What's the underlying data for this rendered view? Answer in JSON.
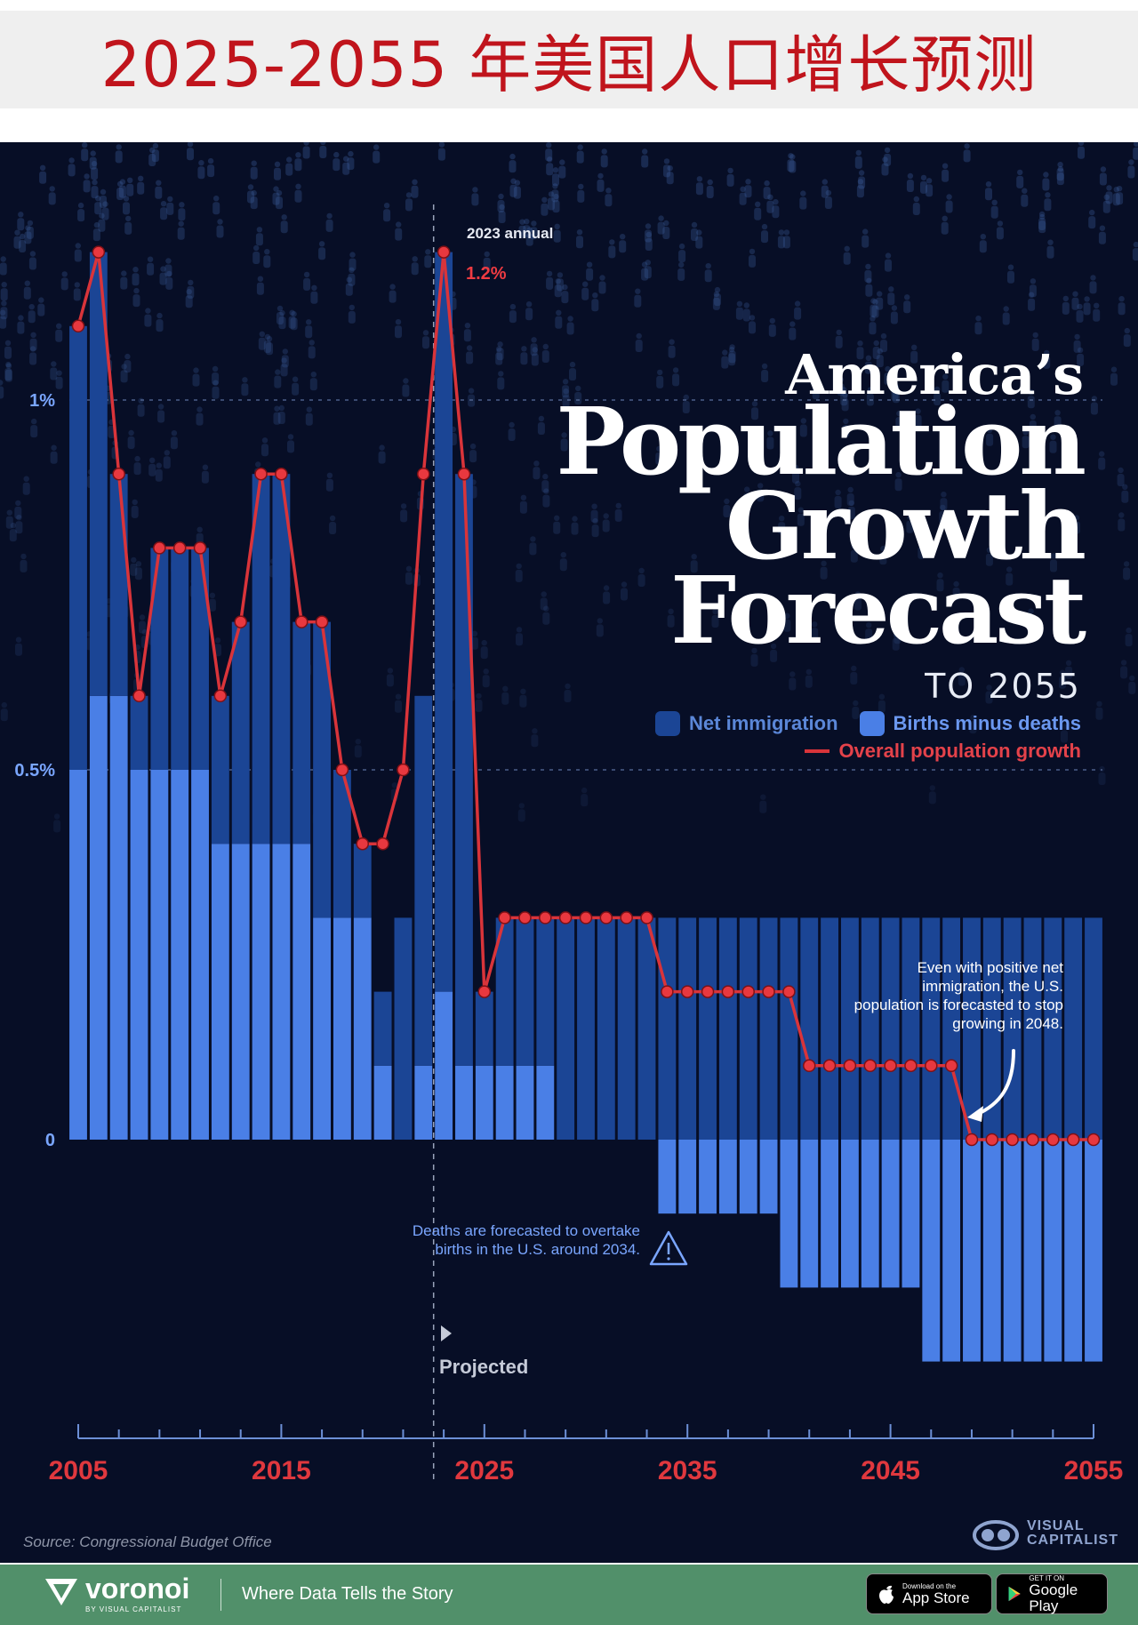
{
  "banner": {
    "title": "2025-2055 年美国人口增长预测"
  },
  "title": {
    "line1": "America’s",
    "line2": "Population",
    "line3": "Growth",
    "line4": "Forecast",
    "line5": "TO 2055"
  },
  "legend": {
    "net_immigration": "Net immigration",
    "births_minus_deaths": "Births minus deaths",
    "overall_growth": "Overall population growth"
  },
  "colors": {
    "background": "#070e26",
    "net_immigration": "#1b4595",
    "births_minus_deaths": "#4a7fe6",
    "overall_growth": "#d9343a",
    "axis_year": "#e0383e",
    "axis_tick": "#6c8fd6"
  },
  "annotations": {
    "peak_label": "2023 annual",
    "peak_value": "1.2%",
    "stop_growing": "Even with positive net immigration, the U.S. population is forecasted to stop growing in 2048.",
    "deaths_overtake": "Deaths are forecasted to overtake births in the U.S. around 2034.",
    "projected": "Projected"
  },
  "source": "Source: Congressional Budget Office",
  "branding": {
    "visual_capitalist_line1": "VISUAL",
    "visual_capitalist_line2": "CAPITALIST",
    "voronoi": "voronoi",
    "voronoi_by": "BY VISUAL CAPITALIST",
    "tagline": "Where Data Tells the Story",
    "appstore_small": "Download on the",
    "appstore_big": "App Store",
    "googleplay_small": "GET IT ON",
    "googleplay_big": "Google Play"
  },
  "chart_data": {
    "type": "bar",
    "title": "America’s Population Growth Forecast to 2055",
    "x": [
      2005,
      2006,
      2007,
      2008,
      2009,
      2010,
      2011,
      2012,
      2013,
      2014,
      2015,
      2016,
      2017,
      2018,
      2019,
      2020,
      2021,
      2022,
      2023,
      2024,
      2025,
      2026,
      2027,
      2028,
      2029,
      2030,
      2031,
      2032,
      2033,
      2034,
      2035,
      2036,
      2037,
      2038,
      2039,
      2040,
      2041,
      2042,
      2043,
      2044,
      2045,
      2046,
      2047,
      2048,
      2049,
      2050,
      2051,
      2052,
      2053,
      2054,
      2055
    ],
    "series": [
      {
        "name": "Net immigration",
        "stack": true,
        "values": [
          0.6,
          0.6,
          0.3,
          0.1,
          0.3,
          0.3,
          0.3,
          0.2,
          0.3,
          0.5,
          0.5,
          0.3,
          0.4,
          0.2,
          0.1,
          0.1,
          0.3,
          0.5,
          1.0,
          0.8,
          0.1,
          0.2,
          0.2,
          0.2,
          0.3,
          0.3,
          0.3,
          0.3,
          0.3,
          0.3,
          0.3,
          0.3,
          0.3,
          0.3,
          0.3,
          0.3,
          0.3,
          0.3,
          0.3,
          0.3,
          0.3,
          0.3,
          0.3,
          0.3,
          0.3,
          0.3,
          0.3,
          0.3,
          0.3,
          0.3,
          0.3
        ]
      },
      {
        "name": "Births minus deaths",
        "stack": true,
        "values": [
          0.5,
          0.6,
          0.6,
          0.5,
          0.5,
          0.5,
          0.5,
          0.4,
          0.4,
          0.4,
          0.4,
          0.4,
          0.3,
          0.3,
          0.3,
          0.1,
          0.0,
          0.1,
          0.2,
          0.1,
          0.1,
          0.1,
          0.1,
          0.1,
          0.0,
          0.0,
          0.0,
          0.0,
          0.0,
          -0.1,
          -0.1,
          -0.1,
          -0.1,
          -0.1,
          -0.1,
          -0.2,
          -0.2,
          -0.2,
          -0.2,
          -0.2,
          -0.2,
          -0.2,
          -0.3,
          -0.3,
          -0.3,
          -0.3,
          -0.3,
          -0.3,
          -0.3,
          -0.3,
          -0.3
        ]
      },
      {
        "name": "Overall population growth",
        "type": "line",
        "values": [
          1.1,
          1.2,
          0.9,
          0.6,
          0.8,
          0.8,
          0.8,
          0.6,
          0.7,
          0.9,
          0.9,
          0.7,
          0.7,
          0.5,
          0.4,
          0.4,
          0.5,
          0.9,
          1.2,
          0.9,
          0.2,
          0.3,
          0.3,
          0.3,
          0.3,
          0.3,
          0.3,
          0.3,
          0.3,
          0.2,
          0.2,
          0.2,
          0.2,
          0.2,
          0.2,
          0.2,
          0.1,
          0.1,
          0.1,
          0.1,
          0.1,
          0.1,
          0.1,
          0.1,
          0.0,
          0.0,
          0.0,
          0.0,
          0.0,
          0.0,
          0.0
        ]
      }
    ],
    "y_tick_labels": [
      "0",
      "0.5%",
      "1%"
    ],
    "y_ticks": [
      0,
      0.5,
      1.0
    ],
    "x_tick_labels": [
      "2005",
      "2015",
      "2025",
      "2035",
      "2045",
      "2055"
    ],
    "ylim": [
      -0.3,
      1.2
    ],
    "projected_from": 2022.5,
    "xlabel": "",
    "ylabel": "",
    "legend_position": "right"
  }
}
